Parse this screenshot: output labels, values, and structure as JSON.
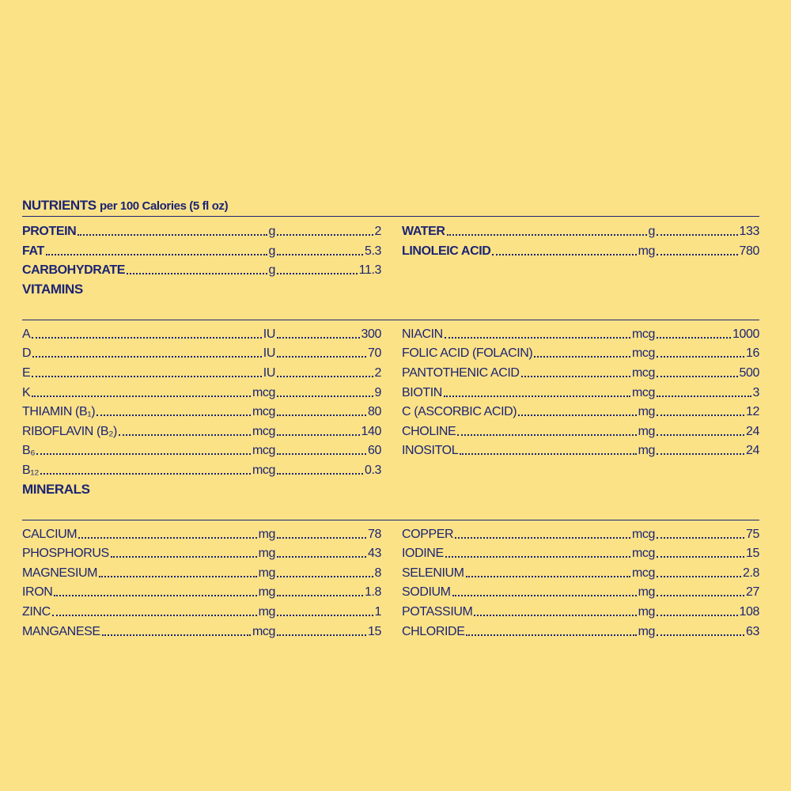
{
  "header": {
    "title_bold": "NUTRIENTS",
    "title_rest": "per 100 Calories (5 fl oz)"
  },
  "sections": [
    {
      "bold_names": true,
      "left": [
        {
          "name": "PROTEIN",
          "unit": "g",
          "value": "2"
        },
        {
          "name": "FAT",
          "unit": "g",
          "value": "5.3"
        },
        {
          "name": "CARBOHYDRATE",
          "unit": "g",
          "value": "11.3"
        }
      ],
      "right": [
        {
          "name": "WATER",
          "unit": "g",
          "value": "133"
        },
        {
          "name": "LINOLEIC ACID",
          "unit": "mg",
          "value": "780"
        }
      ]
    },
    {
      "heading": "VITAMINS",
      "bold_names": false,
      "left": [
        {
          "name": "A",
          "unit": "IU",
          "value": "300"
        },
        {
          "name": "D",
          "unit": "IU",
          "value": "70"
        },
        {
          "name": "E",
          "unit": "IU",
          "value": "2"
        },
        {
          "name": "K",
          "unit": "mcg",
          "value": "9"
        },
        {
          "name": "THIAMIN (B₁)",
          "unit": "mcg",
          "value": "80"
        },
        {
          "name": "RIBOFLAVIN (B₂)",
          "unit": "mcg",
          "value": "140"
        },
        {
          "name": "B₆",
          "unit": "mcg",
          "value": "60"
        },
        {
          "name": "B₁₂",
          "unit": "mcg",
          "value": "0.3"
        }
      ],
      "right": [
        {
          "name": "NIACIN",
          "unit": "mcg",
          "value": "1000"
        },
        {
          "name": "FOLIC ACID (FOLACIN)",
          "unit": "mcg",
          "value": "16"
        },
        {
          "name": "PANTOTHENIC ACID",
          "unit": "mcg",
          "value": "500"
        },
        {
          "name": "BIOTIN",
          "unit": "mcg",
          "value": "3"
        },
        {
          "name": "C (ASCORBIC ACID)",
          "unit": "mg",
          "value": "12"
        },
        {
          "name": "CHOLINE",
          "unit": "mg",
          "value": "24"
        },
        {
          "name": "INOSITOL",
          "unit": "mg",
          "value": "24"
        }
      ]
    },
    {
      "heading": "MINERALS",
      "bold_names": false,
      "left": [
        {
          "name": "CALCIUM",
          "unit": "mg",
          "value": "78"
        },
        {
          "name": "PHOSPHORUS",
          "unit": "mg",
          "value": "43"
        },
        {
          "name": "MAGNESIUM",
          "unit": "mg",
          "value": "8"
        },
        {
          "name": "IRON",
          "unit": "mg",
          "value": "1.8"
        },
        {
          "name": "ZINC",
          "unit": "mg",
          "value": "1"
        },
        {
          "name": "MANGANESE",
          "unit": "mcg",
          "value": "15"
        }
      ],
      "right": [
        {
          "name": "COPPER",
          "unit": "mcg",
          "value": "75"
        },
        {
          "name": "IODINE",
          "unit": "mcg",
          "value": "15"
        },
        {
          "name": "SELENIUM",
          "unit": "mcg",
          "value": "2.8"
        },
        {
          "name": "SODIUM",
          "unit": "mg",
          "value": "27"
        },
        {
          "name": "POTASSIUM",
          "unit": "mg",
          "value": "108"
        },
        {
          "name": "CHLORIDE",
          "unit": "mg",
          "value": "63"
        }
      ]
    }
  ]
}
